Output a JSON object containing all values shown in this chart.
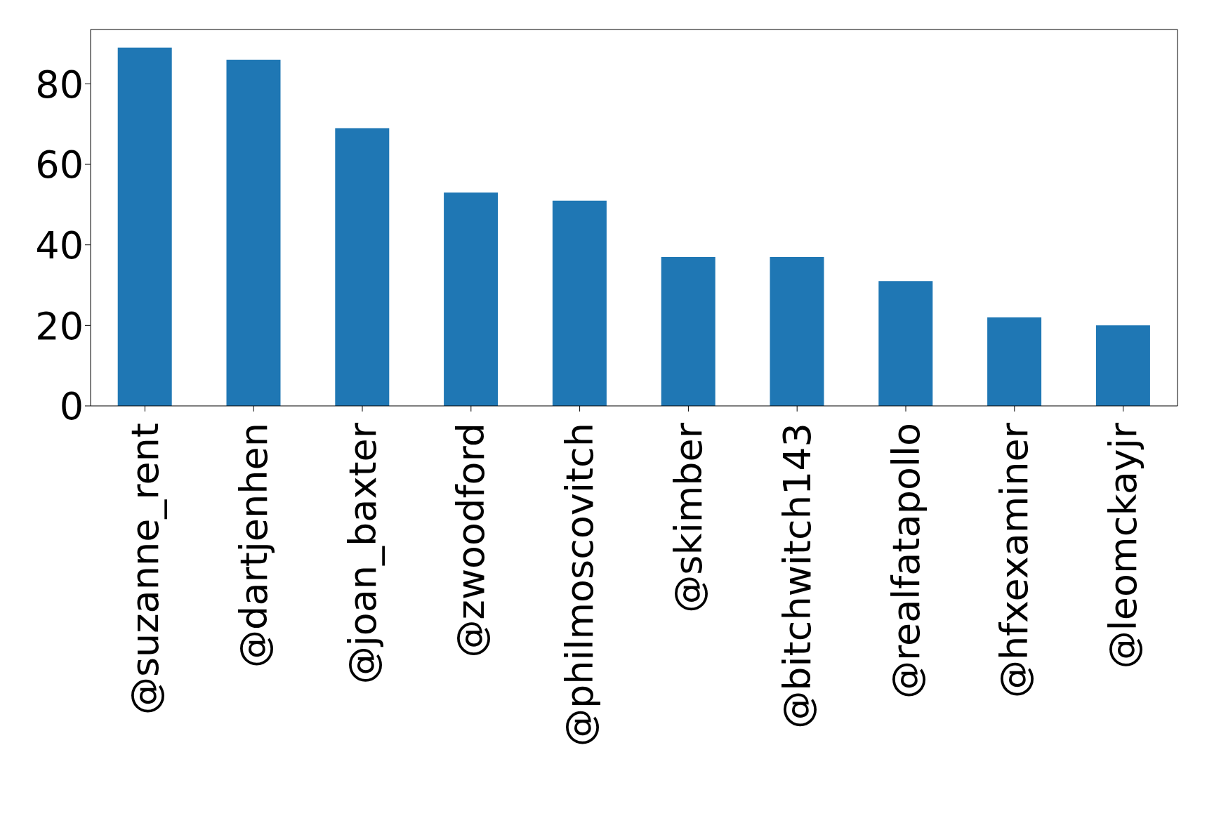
{
  "chart_data": {
    "type": "bar",
    "categories": [
      "@suzanne_rent",
      "@dartjenhen",
      "@joan_baxter",
      "@zwoodford",
      "@philmoscovitch",
      "@skimber",
      "@bitchwitch143",
      "@realfatapollo",
      "@hfxexaminer",
      "@leomckayjr"
    ],
    "values": [
      89,
      86,
      69,
      53,
      51,
      37,
      37,
      31,
      22,
      20
    ],
    "color": "#1f77b4",
    "ylim": [
      0,
      93.5
    ],
    "yticks": [
      0,
      20,
      40,
      60,
      80
    ]
  }
}
